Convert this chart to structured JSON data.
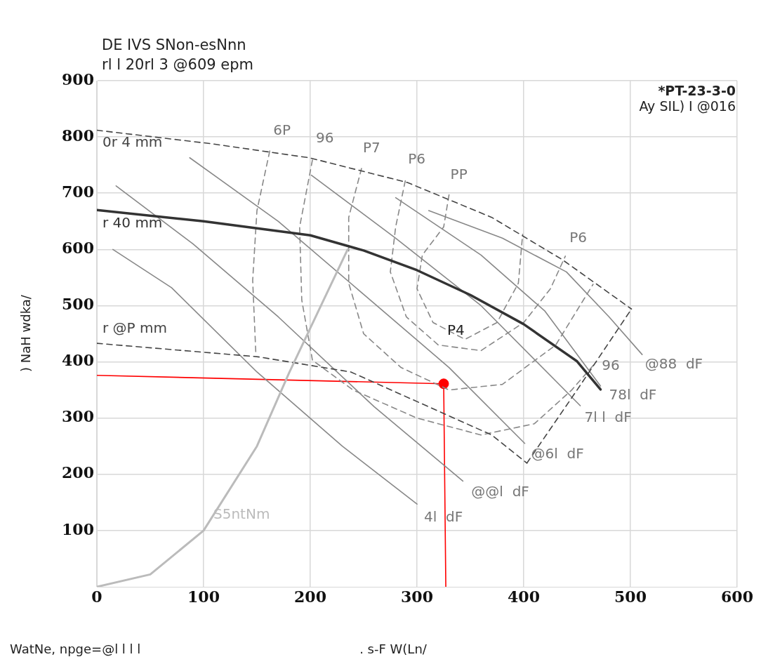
{
  "chart_data": {
    "type": "line",
    "subtitle": "DE IVS SNon-esNnn\nrl l 20rl  3  @609 epm",
    "xlabel": ". s-F  W(Ln/",
    "ylabel": ") NaH wdka/",
    "xlim": [
      0,
      600
    ],
    "xticks": [
      0,
      100,
      200,
      300,
      400,
      500,
      600
    ],
    "ylim": [
      0,
      900
    ],
    "yticks": [
      100,
      200,
      300,
      400,
      500,
      600,
      700,
      800,
      900
    ],
    "grid": true,
    "legend": false,
    "marker": "none",
    "series": [
      {
        "name": "S5ntNm",
        "color": "#bbbbbb",
        "x": [
          0,
          50,
          100,
          150,
          180,
          210,
          235
        ],
        "values": [
          0,
          22,
          100,
          250,
          380,
          500,
          600
        ]
      },
      {
        "name": "r 40 mm",
        "color": "#333333",
        "x": [
          0,
          100,
          200,
          250,
          300,
          350,
          400,
          450,
          472
        ],
        "values": [
          670,
          650,
          625,
          598,
          563,
          519,
          467,
          401,
          351
        ]
      },
      {
        "name": "0r 4 mm",
        "color": "#444444",
        "line_style": "dashed",
        "x": [
          0,
          107,
          199,
          291,
          370,
          436,
          501
        ],
        "values": [
          812,
          788,
          763,
          719,
          657,
          582,
          494
        ]
      },
      {
        "name": "r @P mm",
        "color": "#444444",
        "line_style": "dashed",
        "x": [
          0,
          151,
          238,
          304,
          370,
          403
        ],
        "values": [
          433,
          409,
          382,
          326,
          270,
          220
        ]
      },
      {
        "color": "#444444",
        "line_style": "dashed",
        "x": [
          403,
          450,
          501
        ],
        "values": [
          220,
          350,
          494
        ]
      },
      {
        "name": "6P",
        "color": "#888888",
        "line_style": "dashed",
        "x": [
          162,
          150,
          146,
          149
        ],
        "values": [
          775,
          669,
          545,
          413
        ]
      },
      {
        "name": "96",
        "color": "#888888",
        "line_style": "dashed",
        "x": [
          202,
          190,
          192,
          202,
          240,
          300,
          360,
          410,
          445,
          468
        ],
        "values": [
          759,
          640,
          510,
          403,
          350,
          300,
          270,
          290,
          350,
          400
        ]
      },
      {
        "name": "P7",
        "color": "#888888",
        "line_style": "dashed",
        "x": [
          248,
          236,
          236,
          250,
          285,
          330,
          380,
          430,
          465
        ],
        "values": [
          744,
          657,
          540,
          450,
          390,
          350,
          360,
          430,
          538
        ]
      },
      {
        "name": "P6",
        "color": "#888888",
        "line_style": "dashed",
        "x": [
          289,
          280,
          275,
          290,
          320,
          360,
          400,
          425,
          439
        ],
        "values": [
          722,
          640,
          560,
          480,
          430,
          420,
          470,
          530,
          588
        ]
      },
      {
        "name": "PP",
        "color": "#888888",
        "line_style": "dashed",
        "x": [
          330,
          325,
          305,
          300,
          315,
          345,
          375,
          395,
          399
        ],
        "values": [
          697,
          640,
          590,
          530,
          470,
          440,
          470,
          540,
          627
        ]
      },
      {
        "name": "4l  dF",
        "color": "#888888",
        "x": [
          15,
          70,
          150,
          230,
          300
        ],
        "values": [
          600,
          532,
          382,
          250,
          147
        ]
      },
      {
        "name": "@@l  dF",
        "color": "#888888",
        "x": [
          18,
          90,
          170,
          260,
          343
        ],
        "values": [
          713,
          610,
          480,
          320,
          188
        ]
      },
      {
        "name": "@6l  dF",
        "color": "#888888",
        "x": [
          87,
          170,
          250,
          330,
          401
        ],
        "values": [
          763,
          650,
          520,
          390,
          255
        ]
      },
      {
        "name": "7l l  dF",
        "color": "#888888",
        "x": [
          201,
          280,
          360,
          453
        ],
        "values": [
          732,
          620,
          500,
          322
        ]
      },
      {
        "name": "78l  dF",
        "color": "#888888",
        "x": [
          280,
          360,
          420,
          472
        ],
        "values": [
          692,
          590,
          490,
          357
        ]
      },
      {
        "name": "@88  dF",
        "color": "#888888",
        "x": [
          311,
          380,
          440,
          480,
          511
        ],
        "values": [
          669,
          620,
          560,
          480,
          413
        ]
      },
      {
        "color": "#ff0000",
        "x": [
          0,
          325,
          327
        ],
        "values": [
          376,
          361,
          0
        ]
      },
      {
        "type": "scatter",
        "color": "#ff0000",
        "marker": "circle",
        "x": [
          325
        ],
        "values": [
          361
        ]
      }
    ],
    "annotations": [
      "*PT-23-3-0",
      "Ay SIL) I @016",
      "WatNe, npge=@l l l l",
      "P4"
    ]
  }
}
